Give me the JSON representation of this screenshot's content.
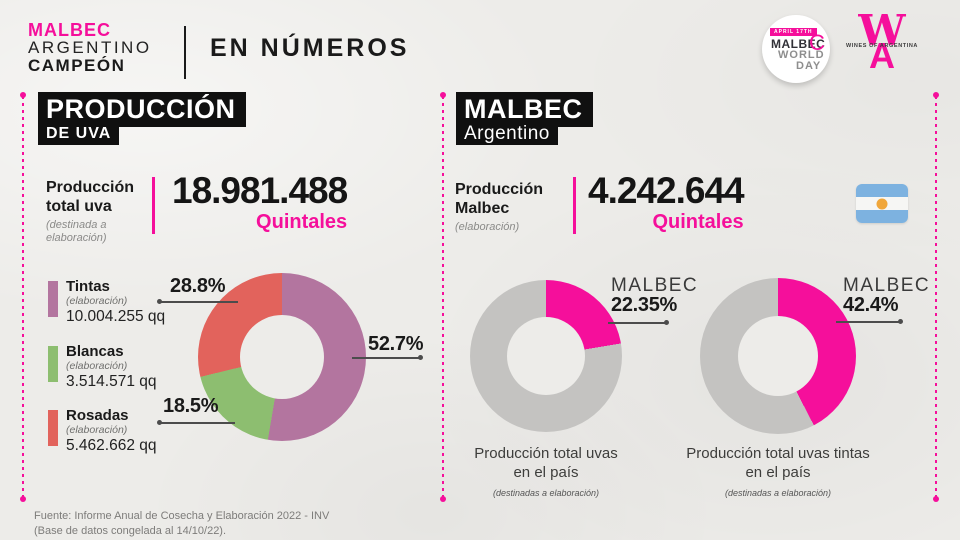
{
  "colors": {
    "accent_pink": "#f50f9b",
    "paper": "#edece9",
    "ink": "#1a1a1a",
    "donut_gray": "#c4c3c1"
  },
  "header": {
    "brand_line1": "MALBEC",
    "brand_line2": "ARGENTINO",
    "brand_line3": "CAMPEÓN",
    "subtitle": "EN NÚMEROS",
    "badge": {
      "banner": "APRIL 17TH",
      "word1": "MALBEC",
      "letter_c": "C",
      "word2": "WORLD",
      "word3": "DAY"
    },
    "wa_logo": {
      "monogram_top": "W",
      "monogram_bottom": "A",
      "text": "WINES OF ARGENTINA"
    }
  },
  "left_section": {
    "title_line1": "PRODUCCIÓN",
    "title_line2": "DE UVA",
    "stat": {
      "label_line1": "Producción",
      "label_line2": "total uva",
      "note_line1": "(destinada a",
      "note_line2": "elaboración)",
      "value": "18.981.488",
      "unit": "Quintales"
    },
    "legend": [
      {
        "name": "Tintas",
        "note": "(elaboración)",
        "value": "10.004.255 qq",
        "color": "#b3759f"
      },
      {
        "name": "Blancas",
        "note": "(elaboración)",
        "value": "3.514.571 qq",
        "color": "#8dbe70"
      },
      {
        "name": "Rosadas",
        "note": "(elaboración)",
        "value": "5.462.662 qq",
        "color": "#e2635c"
      }
    ]
  },
  "right_section": {
    "title_line1": "MALBEC",
    "title_line2": "Argentino",
    "stat": {
      "label_line1": "Producción",
      "label_line2": "Malbec",
      "note": "(elaboración)",
      "value": "4.242.644",
      "unit": "Quintales"
    },
    "donut1": {
      "label": "MALBEC",
      "caption_line1": "Producción total uvas",
      "caption_line2": "en el país",
      "caption_note": "(destinadas a elaboración)"
    },
    "donut2": {
      "label": "MALBEC",
      "caption_line1": "Producción total uvas tintas",
      "caption_line2": "en el país",
      "caption_note": "(destinadas a elaboración)"
    }
  },
  "footer": {
    "source_line1": "Fuente: Informe Anual de Cosecha y Elaboración 2022 - INV",
    "source_line2": "(Base de datos congelada al 14/10/22)."
  },
  "chart_data": [
    {
      "type": "pie",
      "subtype": "donut",
      "title": "Producción de uva por tipo",
      "categories": [
        "Tintas",
        "Blancas",
        "Rosadas"
      ],
      "values": [
        52.7,
        18.5,
        28.8
      ],
      "value_labels": [
        "52.7%",
        "18.5%",
        "28.8%"
      ],
      "absolute_values_qq": [
        "10.004.255",
        "3.514.571",
        "5.462.662"
      ],
      "colors": [
        "#b3759f",
        "#8dbe70",
        "#e2635c"
      ],
      "units": "percent",
      "start_angle_deg": 0,
      "direction": "clockwise"
    },
    {
      "type": "pie",
      "subtype": "donut",
      "title": "Malbec sobre producción total uvas en el país (destinadas a elaboración)",
      "categories": [
        "MALBEC",
        ""
      ],
      "values": [
        22.35,
        77.65
      ],
      "value_labels": [
        "22.35%"
      ],
      "colors": [
        "#f50f9b",
        "#c4c3c1"
      ],
      "units": "percent",
      "start_angle_deg": 0,
      "direction": "clockwise"
    },
    {
      "type": "pie",
      "subtype": "donut",
      "title": "Malbec sobre producción total uvas tintas en el país (destinadas a elaboración)",
      "categories": [
        "MALBEC",
        ""
      ],
      "values": [
        42.4,
        57.6
      ],
      "value_labels": [
        "42.4%"
      ],
      "colors": [
        "#f50f9b",
        "#c4c3c1"
      ],
      "units": "percent",
      "start_angle_deg": 0,
      "direction": "clockwise"
    }
  ]
}
